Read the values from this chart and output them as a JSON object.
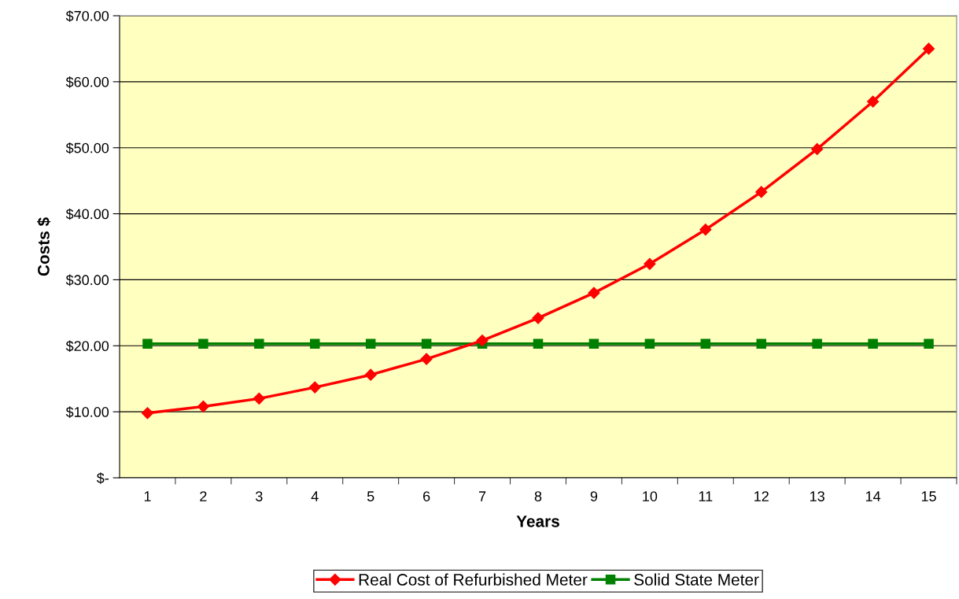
{
  "chart_data": {
    "type": "line",
    "xlabel": "Years",
    "ylabel": "Costs $",
    "categories": [
      "1",
      "2",
      "3",
      "4",
      "5",
      "6",
      "7",
      "8",
      "9",
      "10",
      "11",
      "12",
      "13",
      "14",
      "15"
    ],
    "series": [
      {
        "name": "Real Cost of Refurbished Meter",
        "color": "#ff0000",
        "marker": "diamond",
        "values": [
          9.8,
          10.8,
          12.0,
          13.7,
          15.6,
          18.0,
          20.8,
          24.2,
          28.0,
          32.4,
          37.6,
          43.3,
          49.8,
          57.0,
          65.0
        ]
      },
      {
        "name": "Solid State Meter",
        "color": "#008000",
        "marker": "square",
        "values": [
          20.3,
          20.3,
          20.3,
          20.3,
          20.3,
          20.3,
          20.3,
          20.3,
          20.3,
          20.3,
          20.3,
          20.3,
          20.3,
          20.3,
          20.3
        ]
      }
    ],
    "ylim": [
      0,
      70
    ],
    "yticks": [
      {
        "value": 0,
        "label": "$-"
      },
      {
        "value": 10,
        "label": "$10.00"
      },
      {
        "value": 20,
        "label": "$20.00"
      },
      {
        "value": 30,
        "label": "$30.00"
      },
      {
        "value": 40,
        "label": "$40.00"
      },
      {
        "value": 50,
        "label": "$50.00"
      },
      {
        "value": 60,
        "label": "$60.00"
      },
      {
        "value": 70,
        "label": "$70.00"
      }
    ],
    "grid": "y",
    "legend": "bottom",
    "line_style": "solid"
  }
}
